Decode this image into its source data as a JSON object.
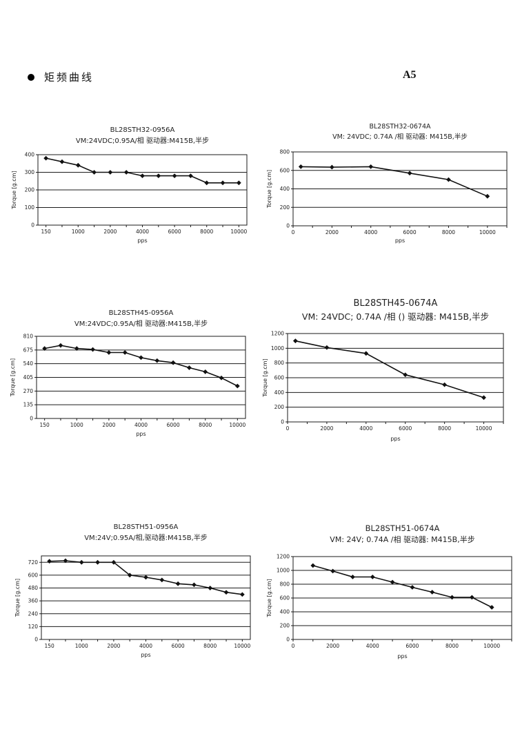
{
  "page": {
    "header_title": "矩频曲线",
    "page_label": "A5"
  },
  "chart_data": [
    {
      "type": "line",
      "title": "BL28STH32-0956A",
      "subtitle": "VM:24VDC;0.95A/相 驱动器:M415B,半步",
      "ylabel": "Torque [g.cm]",
      "xlabel": "pps",
      "legend": "none",
      "grid": "horizontal",
      "x_mode": "categorical",
      "x": [
        150,
        500,
        1000,
        1500,
        2000,
        3000,
        4000,
        5000,
        6000,
        7000,
        8000,
        9000,
        10000
      ],
      "x_tick_labels": [
        "150",
        "",
        "1000",
        "",
        "2000",
        "",
        "4000",
        "",
        "6000",
        "",
        "8000",
        "",
        "10000"
      ],
      "values": [
        380,
        360,
        340,
        300,
        300,
        300,
        280,
        280,
        280,
        280,
        240,
        240,
        240
      ],
      "y_ticks": [
        0,
        100,
        200,
        300,
        400
      ],
      "ylim": [
        0,
        400
      ]
    },
    {
      "type": "line",
      "title": "BL28STH32-0674A",
      "subtitle": "VM: 24VDC;  0.74A /相   驱动器: M415B,半步",
      "ylabel": "Torque [g.cm]",
      "xlabel": "pps",
      "legend": "none",
      "grid": "horizontal",
      "x_mode": "linear",
      "x": [
        400,
        2000,
        4000,
        6000,
        8000,
        10000
      ],
      "values": [
        640,
        635,
        640,
        570,
        500,
        320
      ],
      "xlim": [
        0,
        11000
      ],
      "x_major_ticks": [
        0,
        2000,
        4000,
        6000,
        8000,
        10000
      ],
      "x_minor_step": 1000,
      "y_ticks": [
        0,
        200,
        400,
        600,
        800
      ],
      "ylim": [
        0,
        800
      ]
    },
    {
      "type": "line",
      "title": "BL28STH45-0956A",
      "subtitle": "VM:24VDC;0.95A/相 驱动器:M415B,半步",
      "ylabel": "Torque [g.cm]",
      "xlabel": "pps",
      "legend": "none",
      "grid": "horizontal",
      "x_mode": "categorical",
      "x": [
        150,
        500,
        1000,
        1500,
        2000,
        3000,
        4000,
        5000,
        6000,
        7000,
        8000,
        9000,
        10000
      ],
      "x_tick_labels": [
        "150",
        "",
        "1000",
        "",
        "2000",
        "",
        "4000",
        "",
        "6000",
        "",
        "8000",
        "",
        "10000"
      ],
      "values": [
        690,
        720,
        690,
        680,
        650,
        650,
        600,
        570,
        550,
        500,
        460,
        400,
        320
      ],
      "y_ticks": [
        0,
        135,
        270,
        405,
        540,
        675,
        810
      ],
      "ylim": [
        0,
        810
      ]
    },
    {
      "type": "line",
      "title": "BL28STH45-0674A",
      "subtitle": "VM: 24VDC;  0.74A /相 ()  驱动器: M415B,半步",
      "ylabel": "Torque [g.cm]",
      "xlabel": "pps",
      "legend": "none",
      "grid": "horizontal",
      "x_mode": "linear",
      "x": [
        400,
        2000,
        4000,
        6000,
        8000,
        10000
      ],
      "values": [
        1100,
        1010,
        930,
        640,
        505,
        330
      ],
      "xlim": [
        0,
        11000
      ],
      "x_major_ticks": [
        0,
        2000,
        4000,
        6000,
        8000,
        10000
      ],
      "x_minor_step": 1000,
      "y_ticks": [
        0,
        200,
        400,
        600,
        800,
        1000,
        1200
      ],
      "ylim": [
        0,
        1200
      ]
    },
    {
      "type": "line",
      "title": "BL28STH51-0956A",
      "subtitle": "VM:24V;0.95A/相,驱动器:M415B,半步",
      "ylabel": "Torque [g.cm]",
      "xlabel": "pps",
      "legend": "none",
      "grid": "horizontal",
      "x_mode": "categorical",
      "x": [
        150,
        500,
        1000,
        1500,
        2000,
        3000,
        4000,
        5000,
        6000,
        7000,
        8000,
        9000,
        10000
      ],
      "x_tick_labels": [
        "150",
        "",
        "1000",
        "",
        "2000",
        "",
        "4000",
        "",
        "6000",
        "",
        "8000",
        "",
        "10000"
      ],
      "values": [
        730,
        735,
        720,
        720,
        720,
        600,
        580,
        555,
        520,
        510,
        480,
        440,
        420
      ],
      "y_ticks": [
        0,
        120,
        240,
        360,
        480,
        600,
        720
      ],
      "ylim": [
        0,
        780
      ]
    },
    {
      "type": "line",
      "title": "BL28STH51-0674A",
      "subtitle": "VM: 24V;  0.74A /相  驱动器: M415B,半步",
      "ylabel": "Torque [g.cm]",
      "xlabel": "pps",
      "legend": "none",
      "grid": "horizontal",
      "x_mode": "linear",
      "x": [
        1000,
        2000,
        3000,
        4000,
        5000,
        6000,
        7000,
        8000,
        9000,
        10000
      ],
      "values": [
        1070,
        990,
        905,
        905,
        830,
        755,
        685,
        610,
        610,
        465
      ],
      "xlim": [
        0,
        11000
      ],
      "x_major_ticks": [
        0,
        2000,
        4000,
        6000,
        8000,
        10000
      ],
      "x_minor_step": 1000,
      "y_ticks": [
        0,
        200,
        400,
        600,
        800,
        1000,
        1200
      ],
      "ylim": [
        0,
        1200
      ]
    }
  ]
}
